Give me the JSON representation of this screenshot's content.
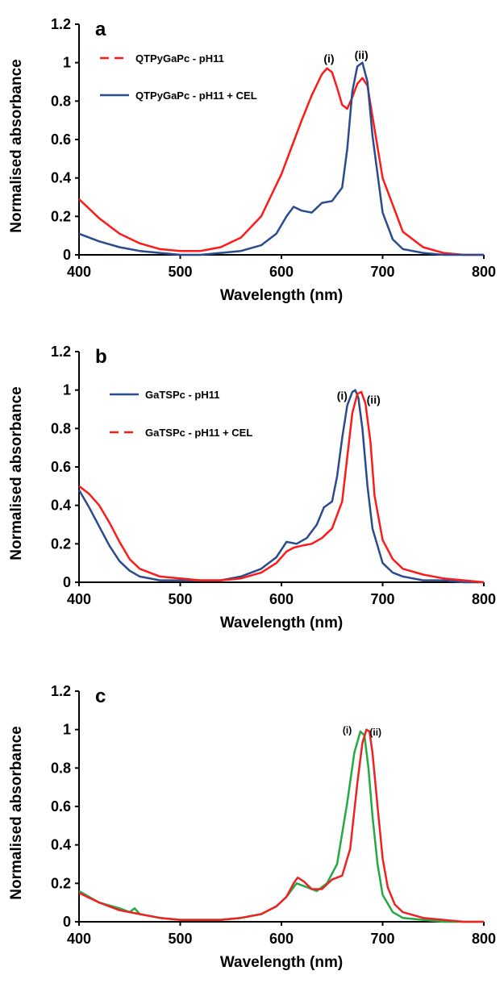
{
  "chart_data": [
    {
      "type": "line",
      "panel_label": "a",
      "xlabel": "Wavelength (nm)",
      "ylabel": "Normalised absorbance",
      "xlim": [
        400,
        800
      ],
      "ylim": [
        0,
        1.2
      ],
      "x_ticks": [
        400,
        500,
        600,
        700,
        800
      ],
      "y_ticks": [
        0,
        0.2,
        0.4,
        0.6,
        0.8,
        1,
        1.2
      ],
      "grid": false,
      "legend_position": "top-left",
      "annotations": [
        {
          "text": "(i)",
          "x": 647,
          "y": 1.0
        },
        {
          "text": "(ii)",
          "x": 679,
          "y": 1.02
        }
      ],
      "series": [
        {
          "name": "QTPyGaPc - pH11",
          "color": "#ff1a1a",
          "dashed_legend": true,
          "x": [
            400,
            420,
            440,
            460,
            480,
            500,
            510,
            520,
            540,
            560,
            580,
            600,
            610,
            620,
            630,
            640,
            645,
            650,
            655,
            660,
            665,
            670,
            675,
            680,
            685,
            690,
            700,
            720,
            740,
            760,
            780,
            800
          ],
          "y": [
            0.29,
            0.19,
            0.11,
            0.06,
            0.03,
            0.02,
            0.02,
            0.02,
            0.04,
            0.09,
            0.2,
            0.42,
            0.56,
            0.7,
            0.83,
            0.94,
            0.97,
            0.95,
            0.87,
            0.78,
            0.76,
            0.82,
            0.89,
            0.92,
            0.88,
            0.72,
            0.4,
            0.12,
            0.04,
            0.01,
            0.0,
            0.0
          ]
        },
        {
          "name": "QTPyGaPc - pH11 + CEL",
          "color": "#2a4b8d",
          "dashed_legend": false,
          "x": [
            400,
            420,
            440,
            460,
            480,
            500,
            520,
            540,
            560,
            580,
            595,
            605,
            612,
            620,
            630,
            640,
            650,
            660,
            665,
            670,
            675,
            680,
            685,
            690,
            700,
            710,
            720,
            740,
            760,
            780,
            800
          ],
          "y": [
            0.11,
            0.07,
            0.04,
            0.02,
            0.01,
            0.0,
            0.0,
            0.01,
            0.02,
            0.05,
            0.11,
            0.2,
            0.25,
            0.23,
            0.22,
            0.27,
            0.28,
            0.35,
            0.55,
            0.85,
            0.98,
            1.0,
            0.9,
            0.62,
            0.22,
            0.08,
            0.03,
            0.01,
            0.0,
            0.0,
            0.0
          ]
        }
      ]
    },
    {
      "type": "line",
      "panel_label": "b",
      "xlabel": "Wavelength (nm)",
      "ylabel": "Normalised absorbance",
      "xlim": [
        400,
        800
      ],
      "ylim": [
        0,
        1.2
      ],
      "x_ticks": [
        400,
        500,
        600,
        700,
        800
      ],
      "y_ticks": [
        0,
        0.2,
        0.4,
        0.6,
        0.8,
        1,
        1.2
      ],
      "grid": false,
      "legend_position": "top-left",
      "annotations": [
        {
          "text": "(i)",
          "x": 660,
          "y": 0.95
        },
        {
          "text": "(ii)",
          "x": 691,
          "y": 0.93
        }
      ],
      "series": [
        {
          "name": "GaTSPc - pH11",
          "color": "#2a4b8d",
          "dashed_legend": false,
          "x": [
            400,
            410,
            420,
            430,
            440,
            450,
            460,
            480,
            500,
            520,
            540,
            560,
            580,
            595,
            605,
            615,
            625,
            635,
            642,
            650,
            655,
            660,
            665,
            670,
            673,
            676,
            680,
            685,
            690,
            700,
            710,
            720,
            740,
            760,
            780,
            800
          ],
          "y": [
            0.48,
            0.39,
            0.29,
            0.19,
            0.11,
            0.06,
            0.03,
            0.01,
            0.01,
            0.01,
            0.01,
            0.03,
            0.07,
            0.13,
            0.21,
            0.2,
            0.23,
            0.3,
            0.39,
            0.42,
            0.55,
            0.75,
            0.92,
            0.99,
            1.0,
            0.96,
            0.8,
            0.5,
            0.28,
            0.1,
            0.05,
            0.03,
            0.01,
            0.01,
            0.0,
            0.0
          ]
        },
        {
          "name": "GaTSPc - pH11 + CEL",
          "color": "#ff1a1a",
          "dashed_legend": true,
          "x": [
            400,
            410,
            420,
            430,
            440,
            450,
            460,
            480,
            500,
            520,
            540,
            560,
            580,
            595,
            605,
            612,
            620,
            630,
            640,
            650,
            660,
            665,
            670,
            675,
            679,
            683,
            688,
            692,
            700,
            710,
            720,
            740,
            760,
            780,
            800
          ],
          "y": [
            0.5,
            0.46,
            0.4,
            0.31,
            0.21,
            0.12,
            0.07,
            0.03,
            0.02,
            0.01,
            0.01,
            0.02,
            0.05,
            0.1,
            0.16,
            0.18,
            0.19,
            0.2,
            0.23,
            0.28,
            0.42,
            0.65,
            0.88,
            0.98,
            0.99,
            0.93,
            0.73,
            0.45,
            0.22,
            0.12,
            0.07,
            0.04,
            0.02,
            0.01,
            0.0
          ]
        }
      ]
    },
    {
      "type": "line",
      "panel_label": "c",
      "xlabel": "Wavelength (nm)",
      "ylabel": "Normalised absorbance",
      "xlim": [
        400,
        800
      ],
      "ylim": [
        0,
        1.2
      ],
      "x_ticks": [
        400,
        500,
        600,
        700,
        800
      ],
      "y_ticks": [
        0,
        0.2,
        0.4,
        0.6,
        0.8,
        1,
        1.2
      ],
      "grid": false,
      "legend_position": "none",
      "annotations": [
        {
          "text": "(i)",
          "x": 665,
          "y": 0.98
        },
        {
          "text": "(ii)",
          "x": 693,
          "y": 0.97
        }
      ],
      "series": [
        {
          "color": "#22aa44",
          "x": [
            400,
            420,
            440,
            450,
            455,
            460,
            480,
            500,
            520,
            540,
            560,
            580,
            595,
            605,
            615,
            625,
            635,
            645,
            655,
            665,
            672,
            678,
            682,
            686,
            690,
            695,
            700,
            710,
            720,
            740,
            760,
            780,
            800
          ],
          "y": [
            0.16,
            0.1,
            0.07,
            0.05,
            0.07,
            0.04,
            0.02,
            0.01,
            0.01,
            0.01,
            0.02,
            0.04,
            0.08,
            0.13,
            0.2,
            0.18,
            0.16,
            0.2,
            0.3,
            0.62,
            0.88,
            0.99,
            0.97,
            0.8,
            0.55,
            0.3,
            0.14,
            0.05,
            0.02,
            0.01,
            0.0,
            0.0,
            0.0
          ]
        },
        {
          "color": "#ee2222",
          "x": [
            400,
            420,
            440,
            460,
            480,
            500,
            520,
            540,
            560,
            580,
            595,
            605,
            612,
            616,
            622,
            630,
            640,
            650,
            660,
            668,
            675,
            680,
            684,
            687,
            690,
            695,
            700,
            705,
            712,
            720,
            740,
            760,
            780,
            800
          ],
          "y": [
            0.15,
            0.1,
            0.06,
            0.04,
            0.02,
            0.01,
            0.01,
            0.01,
            0.02,
            0.04,
            0.08,
            0.13,
            0.2,
            0.23,
            0.21,
            0.17,
            0.17,
            0.22,
            0.24,
            0.38,
            0.72,
            0.93,
            1.0,
            0.99,
            0.88,
            0.6,
            0.33,
            0.18,
            0.09,
            0.05,
            0.02,
            0.01,
            0.0,
            0.0
          ]
        }
      ]
    }
  ]
}
